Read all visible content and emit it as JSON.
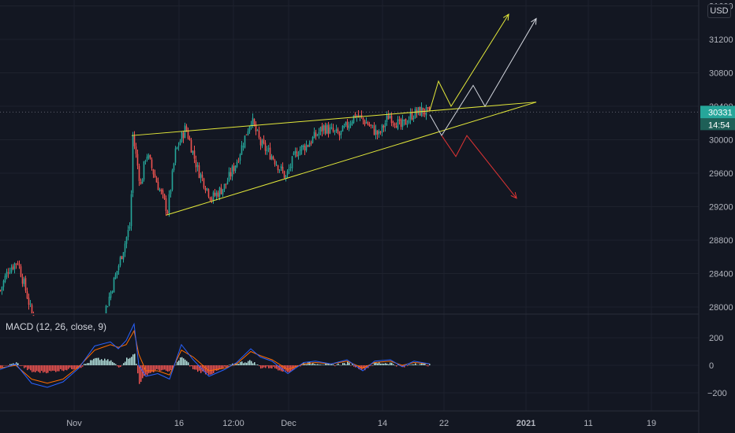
{
  "price_scale": {
    "currency": "USD",
    "last_price": "30331",
    "countdown": "14:54"
  },
  "indicator": {
    "label": "MACD (12, 26, close, 9)"
  },
  "colors": {
    "background": "#131722",
    "grid": "#1e222d",
    "up": "#26a69a",
    "down": "#ef5350",
    "wedge": "#e3e83a",
    "scenario_up_yellow": "#e3e83a",
    "scenario_white": "#d1d4dc",
    "scenario_bear": "#e03434",
    "price_tag": "#26a69a",
    "macd_line": "#2962ff",
    "signal_line": "#ff6d00",
    "hist_pos": "#b2dfdb",
    "hist_neg": "#ef5350"
  },
  "chart_data": [
    {
      "type": "candlestick",
      "title": "",
      "xlabel": "",
      "ylabel": "",
      "x_ticks": [
        "Nov",
        "16",
        "12:00",
        "Dec",
        "14",
        "22",
        "2021",
        "11",
        "19"
      ],
      "y_ticks": [
        28000,
        28400,
        28800,
        29200,
        29600,
        30000,
        30400,
        30800,
        31200,
        31600
      ],
      "ylim": [
        27800,
        32100
      ],
      "grid": true,
      "price_path": [
        [
          0,
          28200
        ],
        [
          10,
          28450
        ],
        [
          22,
          28550
        ],
        [
          35,
          28100
        ],
        [
          45,
          27700
        ],
        [
          128,
          27800
        ],
        [
          150,
          28500
        ],
        [
          165,
          29000
        ],
        [
          168,
          30050
        ],
        [
          178,
          29450
        ],
        [
          185,
          29850
        ],
        [
          200,
          29450
        ],
        [
          212,
          29150
        ],
        [
          222,
          29850
        ],
        [
          235,
          30150
        ],
        [
          250,
          29650
        ],
        [
          268,
          29300
        ],
        [
          285,
          29450
        ],
        [
          300,
          29750
        ],
        [
          318,
          30250
        ],
        [
          330,
          29950
        ],
        [
          345,
          29800
        ],
        [
          362,
          29550
        ],
        [
          375,
          29850
        ],
        [
          390,
          29950
        ],
        [
          410,
          30150
        ],
        [
          430,
          30050
        ],
        [
          450,
          30300
        ],
        [
          465,
          30200
        ],
        [
          480,
          30050
        ],
        [
          493,
          30300
        ],
        [
          508,
          30150
        ],
        [
          522,
          30300
        ],
        [
          535,
          30350
        ],
        [
          545,
          30300
        ]
      ],
      "wedge_upper": [
        [
          167,
          30050
        ],
        [
          680,
          30450
        ]
      ],
      "wedge_lower": [
        [
          211,
          29100
        ],
        [
          680,
          30450
        ]
      ],
      "scenarios": [
        {
          "color": "yellow",
          "points": [
            [
              545,
              30350
            ],
            [
              556,
              30700
            ],
            [
              572,
              30400
            ],
            [
              645,
              31500
            ]
          ]
        },
        {
          "color": "white",
          "points": [
            [
              545,
              30300
            ],
            [
              560,
              30050
            ],
            [
              590,
              30500
            ],
            [
              600,
              30650
            ],
            [
              615,
              30400
            ],
            [
              680,
              31450
            ]
          ]
        },
        {
          "color": "red",
          "points": [
            [
              560,
              30050
            ],
            [
              578,
              29800
            ],
            [
              592,
              30050
            ],
            [
              655,
              29300
            ]
          ]
        }
      ]
    },
    {
      "type": "line",
      "title": "MACD (12, 26, close, 9)",
      "y_ticks": [
        200,
        0,
        -200
      ],
      "ylim": [
        -330,
        330
      ],
      "series": [
        {
          "points": [
            [
              0,
              -30
            ],
            [
              20,
              10
            ],
            [
              40,
              -130
            ],
            [
              60,
              -160
            ],
            [
              80,
              -120
            ],
            [
              100,
              -20
            ],
            [
              120,
              140
            ],
            [
              140,
              170
            ],
            [
              150,
              120
            ],
            [
              160,
              180
            ],
            [
              170,
              300
            ],
            [
              176,
              0
            ],
            [
              185,
              -80
            ],
            [
              200,
              -60
            ],
            [
              215,
              -100
            ],
            [
              230,
              150
            ],
            [
              245,
              40
            ],
            [
              265,
              -80
            ],
            [
              285,
              -30
            ],
            [
              300,
              20
            ],
            [
              318,
              120
            ],
            [
              330,
              60
            ],
            [
              345,
              30
            ],
            [
              365,
              -60
            ],
            [
              385,
              20
            ],
            [
              400,
              30
            ],
            [
              420,
              10
            ],
            [
              440,
              40
            ],
            [
              460,
              -40
            ],
            [
              475,
              30
            ],
            [
              495,
              40
            ],
            [
              510,
              -10
            ],
            [
              525,
              30
            ],
            [
              545,
              10
            ]
          ]
        },
        {
          "points": [
            [
              0,
              -20
            ],
            [
              20,
              0
            ],
            [
              40,
              -100
            ],
            [
              60,
              -130
            ],
            [
              80,
              -100
            ],
            [
              100,
              -10
            ],
            [
              120,
              110
            ],
            [
              140,
              150
            ],
            [
              150,
              130
            ],
            [
              160,
              150
            ],
            [
              170,
              250
            ],
            [
              176,
              80
            ],
            [
              185,
              -40
            ],
            [
              200,
              -40
            ],
            [
              215,
              -70
            ],
            [
              230,
              110
            ],
            [
              245,
              60
            ],
            [
              265,
              -40
            ],
            [
              285,
              -20
            ],
            [
              300,
              10
            ],
            [
              318,
              100
            ],
            [
              330,
              70
            ],
            [
              345,
              40
            ],
            [
              365,
              -30
            ],
            [
              385,
              10
            ],
            [
              400,
              20
            ],
            [
              420,
              10
            ],
            [
              440,
              30
            ],
            [
              460,
              -20
            ],
            [
              475,
              20
            ],
            [
              495,
              30
            ],
            [
              510,
              0
            ],
            [
              525,
              20
            ],
            [
              545,
              10
            ]
          ]
        }
      ]
    }
  ]
}
